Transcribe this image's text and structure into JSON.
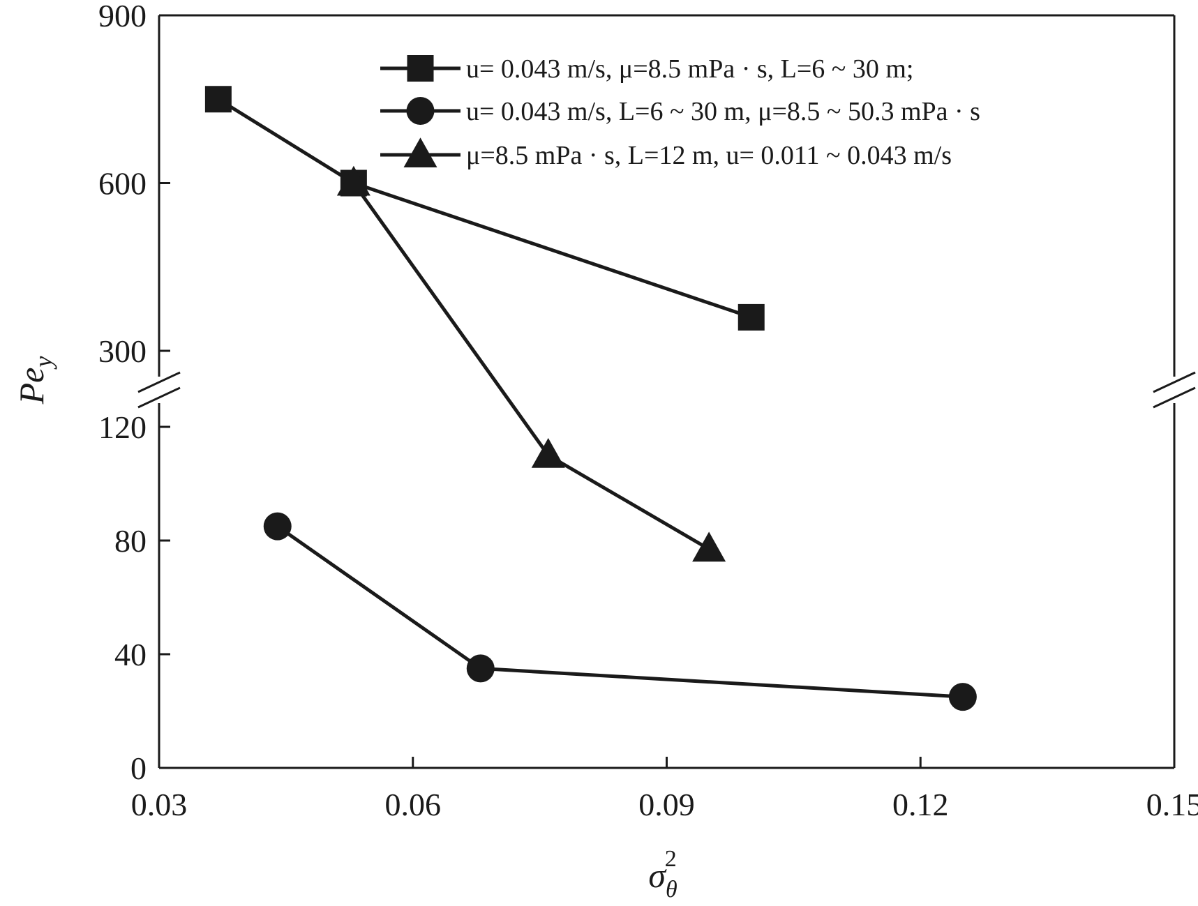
{
  "chart_data": {
    "type": "line",
    "xlabel": "σθ2",
    "ylabel": "Pey",
    "xlim": [
      0.03,
      0.15
    ],
    "x_ticks": [
      "0.03",
      "0.06",
      "0.09",
      "0.12",
      "0.15"
    ],
    "y_axis_broken": true,
    "y_lower_range": [
      0,
      120
    ],
    "y_upper_range": [
      300,
      900
    ],
    "y_ticks_lower": [
      "0",
      "40",
      "80",
      "120"
    ],
    "y_ticks_upper": [
      "300",
      "600",
      "900"
    ],
    "legend_position": "top-right",
    "grid": false,
    "series": [
      {
        "name": "u= 0.043 m/s, μ=8.5 mPa · s, L=6 ~ 30 m;",
        "marker": "square",
        "x": [
          0.037,
          0.053,
          0.1
        ],
        "y": [
          750,
          600,
          360
        ]
      },
      {
        "name": "u= 0.043 m/s, L=6 ~ 30 m, μ=8.5 ~ 50.3 mPa · s",
        "marker": "circle",
        "x": [
          0.044,
          0.068,
          0.125
        ],
        "y": [
          85,
          35,
          25
        ]
      },
      {
        "name": "μ=8.5 mPa · s, L=12 m, u= 0.011 ~ 0.043 m/s",
        "marker": "triangle",
        "x": [
          0.053,
          0.076,
          0.095
        ],
        "y": [
          600,
          110,
          77
        ]
      }
    ]
  },
  "colors": {
    "ink": "#1a1a1a",
    "background": "#ffffff"
  }
}
